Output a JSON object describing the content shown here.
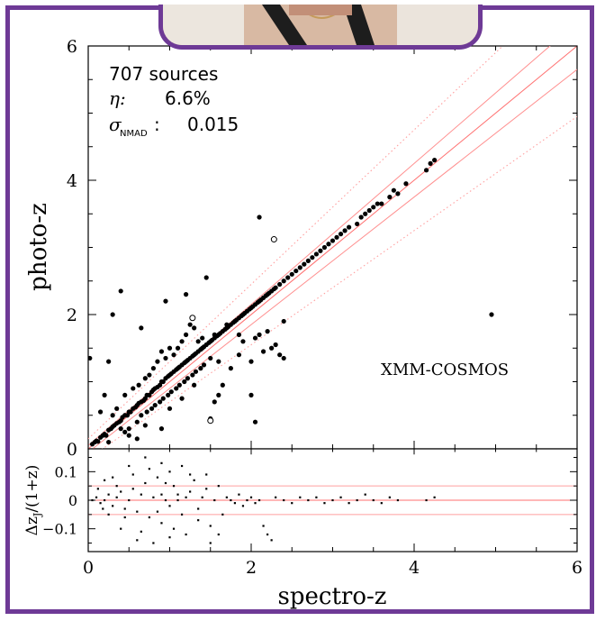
{
  "chart_data": [
    {
      "type": "scatter",
      "xlabel": "spectro-z",
      "ylabel": "photo-z",
      "xlim": [
        0,
        6
      ],
      "ylim": [
        0,
        6
      ],
      "xticks": [
        "0",
        "2",
        "4",
        "6"
      ],
      "yticks": [
        "0",
        "2",
        "4",
        "6"
      ],
      "annotations": {
        "sources": "707 sources",
        "eta_label": "η:",
        "eta_value": "6.6%",
        "sigma_symbol": "σ",
        "sigma_sub": "NMAD",
        "sigma_colon": ":",
        "sigma_value": "0.015",
        "field": "XMM-COSMOS"
      },
      "lines": [
        {
          "style": "solid",
          "color": "#ff6f6f",
          "slope_offset": 0.0
        },
        {
          "style": "solid",
          "color": "#ff8f8f",
          "slope_offset": 0.05
        },
        {
          "style": "solid",
          "color": "#ff8f8f",
          "slope_offset": -0.05
        },
        {
          "style": "dotted",
          "color": "#ff9f9f",
          "slope_offset": 0.15
        },
        {
          "style": "dotted",
          "color": "#ff9f9f",
          "slope_offset": -0.15
        }
      ],
      "filled_points": [
        [
          0.05,
          0.07
        ],
        [
          0.08,
          0.1
        ],
        [
          0.1,
          0.12
        ],
        [
          0.12,
          0.11
        ],
        [
          0.15,
          0.17
        ],
        [
          0.18,
          0.2
        ],
        [
          0.2,
          0.22
        ],
        [
          0.22,
          0.2
        ],
        [
          0.25,
          0.28
        ],
        [
          0.28,
          0.3
        ],
        [
          0.3,
          0.33
        ],
        [
          0.32,
          0.35
        ],
        [
          0.35,
          0.38
        ],
        [
          0.38,
          0.4
        ],
        [
          0.4,
          0.42
        ],
        [
          0.42,
          0.47
        ],
        [
          0.45,
          0.5
        ],
        [
          0.48,
          0.5
        ],
        [
          0.5,
          0.55
        ],
        [
          0.52,
          0.55
        ],
        [
          0.55,
          0.6
        ],
        [
          0.58,
          0.62
        ],
        [
          0.6,
          0.65
        ],
        [
          0.62,
          0.68
        ],
        [
          0.65,
          0.7
        ],
        [
          0.68,
          0.72
        ],
        [
          0.7,
          0.75
        ],
        [
          0.72,
          0.8
        ],
        [
          0.75,
          0.8
        ],
        [
          0.78,
          0.85
        ],
        [
          0.8,
          0.88
        ],
        [
          0.82,
          0.9
        ],
        [
          0.85,
          0.92
        ],
        [
          0.88,
          0.95
        ],
        [
          0.9,
          1.0
        ],
        [
          0.92,
          1.0
        ],
        [
          0.95,
          1.05
        ],
        [
          0.98,
          1.08
        ],
        [
          1.0,
          1.1
        ],
        [
          1.02,
          1.12
        ],
        [
          1.05,
          1.15
        ],
        [
          1.08,
          1.18
        ],
        [
          1.1,
          1.2
        ],
        [
          1.12,
          1.22
        ],
        [
          1.15,
          1.25
        ],
        [
          1.18,
          1.28
        ],
        [
          1.2,
          1.3
        ],
        [
          1.22,
          1.32
        ],
        [
          1.25,
          1.35
        ],
        [
          1.28,
          1.38
        ],
        [
          1.3,
          1.4
        ],
        [
          1.32,
          1.42
        ],
        [
          1.35,
          1.45
        ],
        [
          1.38,
          1.48
        ],
        [
          1.4,
          1.5
        ],
        [
          1.42,
          1.52
        ],
        [
          1.45,
          1.55
        ],
        [
          1.48,
          1.58
        ],
        [
          1.5,
          1.6
        ],
        [
          1.52,
          1.62
        ],
        [
          1.55,
          1.65
        ],
        [
          1.58,
          1.68
        ],
        [
          1.6,
          1.7
        ],
        [
          1.62,
          1.72
        ],
        [
          1.65,
          1.75
        ],
        [
          1.68,
          1.78
        ],
        [
          1.7,
          1.8
        ],
        [
          1.72,
          1.82
        ],
        [
          1.75,
          1.85
        ],
        [
          1.78,
          1.88
        ],
        [
          1.8,
          1.9
        ],
        [
          1.82,
          1.92
        ],
        [
          1.85,
          1.95
        ],
        [
          1.88,
          1.98
        ],
        [
          1.9,
          2.0
        ],
        [
          1.92,
          2.02
        ],
        [
          1.95,
          2.05
        ],
        [
          1.98,
          2.08
        ],
        [
          2.0,
          2.1
        ],
        [
          2.02,
          2.12
        ],
        [
          2.05,
          2.15
        ],
        [
          2.08,
          2.18
        ],
        [
          2.1,
          2.2
        ],
        [
          2.12,
          2.22
        ],
        [
          2.15,
          2.25
        ],
        [
          2.18,
          2.28
        ],
        [
          2.2,
          2.3
        ],
        [
          2.22,
          2.32
        ],
        [
          2.25,
          2.35
        ],
        [
          2.28,
          2.38
        ],
        [
          2.3,
          2.4
        ],
        [
          2.35,
          2.45
        ],
        [
          2.4,
          2.5
        ],
        [
          2.45,
          2.55
        ],
        [
          2.5,
          2.6
        ],
        [
          2.55,
          2.65
        ],
        [
          2.6,
          2.7
        ],
        [
          2.65,
          2.75
        ],
        [
          2.7,
          2.8
        ],
        [
          2.75,
          2.85
        ],
        [
          2.8,
          2.9
        ],
        [
          2.85,
          2.95
        ],
        [
          2.9,
          3.0
        ],
        [
          2.95,
          3.05
        ],
        [
          3.0,
          3.1
        ],
        [
          3.05,
          3.15
        ],
        [
          3.1,
          3.2
        ],
        [
          3.15,
          3.25
        ],
        [
          3.2,
          3.3
        ],
        [
          3.3,
          3.35
        ],
        [
          3.35,
          3.45
        ],
        [
          3.4,
          3.5
        ],
        [
          3.45,
          3.55
        ],
        [
          3.5,
          3.6
        ],
        [
          3.55,
          3.65
        ],
        [
          3.6,
          3.65
        ],
        [
          3.7,
          3.75
        ],
        [
          3.75,
          3.85
        ],
        [
          3.8,
          3.8
        ],
        [
          3.9,
          3.95
        ],
        [
          4.15,
          4.15
        ],
        [
          4.2,
          4.25
        ],
        [
          4.25,
          4.3
        ],
        [
          0.3,
          0.5
        ],
        [
          0.35,
          0.6
        ],
        [
          0.4,
          0.3
        ],
        [
          0.45,
          0.8
        ],
        [
          0.5,
          0.3
        ],
        [
          0.55,
          0.9
        ],
        [
          0.6,
          0.4
        ],
        [
          0.62,
          0.95
        ],
        [
          0.65,
          0.5
        ],
        [
          0.7,
          1.05
        ],
        [
          0.72,
          0.55
        ],
        [
          0.75,
          1.1
        ],
        [
          0.78,
          0.6
        ],
        [
          0.8,
          1.2
        ],
        [
          0.82,
          0.65
        ],
        [
          0.85,
          1.3
        ],
        [
          0.88,
          0.7
        ],
        [
          0.9,
          1.45
        ],
        [
          0.92,
          0.75
        ],
        [
          0.95,
          1.35
        ],
        [
          0.98,
          0.8
        ],
        [
          1.0,
          1.5
        ],
        [
          1.02,
          0.85
        ],
        [
          1.05,
          1.4
        ],
        [
          1.08,
          0.9
        ],
        [
          1.1,
          1.5
        ],
        [
          1.12,
          0.95
        ],
        [
          1.15,
          1.6
        ],
        [
          1.18,
          1.0
        ],
        [
          1.2,
          1.7
        ],
        [
          1.22,
          1.05
        ],
        [
          1.25,
          1.85
        ],
        [
          1.28,
          1.1
        ],
        [
          1.3,
          1.8
        ],
        [
          1.32,
          1.15
        ],
        [
          1.35,
          1.6
        ],
        [
          1.38,
          1.2
        ],
        [
          1.4,
          1.65
        ],
        [
          1.42,
          1.25
        ],
        [
          1.45,
          2.55
        ],
        [
          1.5,
          1.35
        ],
        [
          1.55,
          1.7
        ],
        [
          1.6,
          0.8
        ],
        [
          1.65,
          0.95
        ],
        [
          1.7,
          1.85
        ],
        [
          1.75,
          1.2
        ],
        [
          1.8,
          1.9
        ],
        [
          1.85,
          1.4
        ],
        [
          1.9,
          1.6
        ],
        [
          2.0,
          1.3
        ],
        [
          2.05,
          1.65
        ],
        [
          2.1,
          1.7
        ],
        [
          2.15,
          1.45
        ],
        [
          2.2,
          1.75
        ],
        [
          2.25,
          1.5
        ],
        [
          2.3,
          1.55
        ],
        [
          2.35,
          1.4
        ],
        [
          2.4,
          1.9
        ],
        [
          2.1,
          3.45
        ],
        [
          2.05,
          0.4
        ],
        [
          0.15,
          0.55
        ],
        [
          0.2,
          0.8
        ],
        [
          0.25,
          1.3
        ],
        [
          0.3,
          2.0
        ],
        [
          0.4,
          2.35
        ],
        [
          0.5,
          0.2
        ],
        [
          0.6,
          0.15
        ],
        [
          0.65,
          1.8
        ],
        [
          0.95,
          2.2
        ],
        [
          1.2,
          2.3
        ],
        [
          0.02,
          1.35
        ],
        [
          1.5,
          0.45
        ],
        [
          1.55,
          0.7
        ],
        [
          4.95,
          2.0
        ],
        [
          2.0,
          0.8
        ],
        [
          2.4,
          1.35
        ],
        [
          0.9,
          0.3
        ],
        [
          0.25,
          0.1
        ],
        [
          0.45,
          0.25
        ],
        [
          0.7,
          0.35
        ],
        [
          1.0,
          0.6
        ],
        [
          1.3,
          0.95
        ],
        [
          1.6,
          1.3
        ],
        [
          1.85,
          1.7
        ],
        [
          1.15,
          0.75
        ]
      ],
      "open_points": [
        [
          2.28,
          3.12
        ],
        [
          1.28,
          1.95
        ],
        [
          1.5,
          0.42
        ]
      ],
      "residual": {
        "ylabel_main": "Δz",
        "ylabel_sub": "J",
        "ylabel_rest": "/(1+z)",
        "ylim": [
          -0.18,
          0.18
        ],
        "yticks": [
          "0.1",
          "0",
          "−0.1"
        ],
        "lines": [
          0.0,
          0.05,
          -0.05
        ],
        "points": [
          [
            0.05,
            0.0
          ],
          [
            0.1,
            0.01
          ],
          [
            0.15,
            -0.01
          ],
          [
            0.2,
            0.0
          ],
          [
            0.25,
            0.02
          ],
          [
            0.3,
            -0.02
          ],
          [
            0.35,
            0.01
          ],
          [
            0.4,
            0.03
          ],
          [
            0.45,
            -0.03
          ],
          [
            0.5,
            0.0
          ],
          [
            0.55,
            0.04
          ],
          [
            0.6,
            -0.04
          ],
          [
            0.65,
            0.02
          ],
          [
            0.7,
            0.06
          ],
          [
            0.75,
            -0.06
          ],
          [
            0.8,
            0.01
          ],
          [
            0.85,
            0.08
          ],
          [
            0.9,
            -0.08
          ],
          [
            0.95,
            0.0
          ],
          [
            1.0,
            0.1
          ],
          [
            1.05,
            -0.1
          ],
          [
            1.1,
            0.02
          ],
          [
            1.15,
            0.12
          ],
          [
            1.2,
            -0.12
          ],
          [
            1.25,
            0.03
          ],
          [
            1.3,
            0.07
          ],
          [
            1.35,
            -0.07
          ],
          [
            1.4,
            0.01
          ],
          [
            1.45,
            0.09
          ],
          [
            1.5,
            -0.09
          ],
          [
            1.55,
            0.0
          ],
          [
            1.6,
            0.05
          ],
          [
            1.65,
            -0.05
          ],
          [
            1.7,
            0.01
          ],
          [
            1.75,
            0.0
          ],
          [
            1.8,
            -0.01
          ],
          [
            1.85,
            0.02
          ],
          [
            1.9,
            -0.02
          ],
          [
            1.95,
            0.0
          ],
          [
            2.0,
            0.01
          ],
          [
            2.05,
            -0.01
          ],
          [
            2.1,
            0.0
          ],
          [
            2.15,
            -0.09
          ],
          [
            2.2,
            -0.12
          ],
          [
            2.25,
            -0.14
          ],
          [
            2.3,
            0.01
          ],
          [
            2.4,
            0.0
          ],
          [
            2.5,
            -0.01
          ],
          [
            2.6,
            0.01
          ],
          [
            2.7,
            0.0
          ],
          [
            2.8,
            0.01
          ],
          [
            2.9,
            -0.01
          ],
          [
            3.0,
            0.0
          ],
          [
            3.1,
            0.01
          ],
          [
            3.2,
            -0.01
          ],
          [
            3.3,
            0.0
          ],
          [
            3.4,
            0.02
          ],
          [
            3.5,
            0.0
          ],
          [
            3.6,
            -0.01
          ],
          [
            3.7,
            0.01
          ],
          [
            3.8,
            0.0
          ],
          [
            4.15,
            0.0
          ],
          [
            4.25,
            0.01
          ],
          [
            0.3,
            0.08
          ],
          [
            0.4,
            -0.1
          ],
          [
            0.5,
            0.12
          ],
          [
            0.6,
            -0.14
          ],
          [
            0.7,
            0.15
          ],
          [
            0.8,
            -0.15
          ],
          [
            0.9,
            0.13
          ],
          [
            1.0,
            -0.13
          ],
          [
            0.35,
            0.05
          ],
          [
            0.45,
            -0.06
          ],
          [
            0.55,
            0.09
          ],
          [
            0.65,
            -0.11
          ],
          [
            0.75,
            0.11
          ],
          [
            0.85,
            -0.04
          ],
          [
            0.95,
            0.06
          ],
          [
            1.05,
            0.05
          ],
          [
            1.15,
            -0.05
          ],
          [
            1.25,
            0.09
          ],
          [
            1.35,
            -0.03
          ],
          [
            1.45,
            0.04
          ],
          [
            1.5,
            -0.15
          ],
          [
            1.6,
            -0.12
          ],
          [
            0.2,
            0.07
          ],
          [
            0.25,
            -0.05
          ],
          [
            0.12,
            0.04
          ],
          [
            0.18,
            -0.03
          ],
          [
            0.9,
            0.02
          ],
          [
            1.0,
            -0.02
          ],
          [
            1.1,
            0.0
          ],
          [
            1.2,
            0.01
          ]
        ]
      }
    }
  ]
}
